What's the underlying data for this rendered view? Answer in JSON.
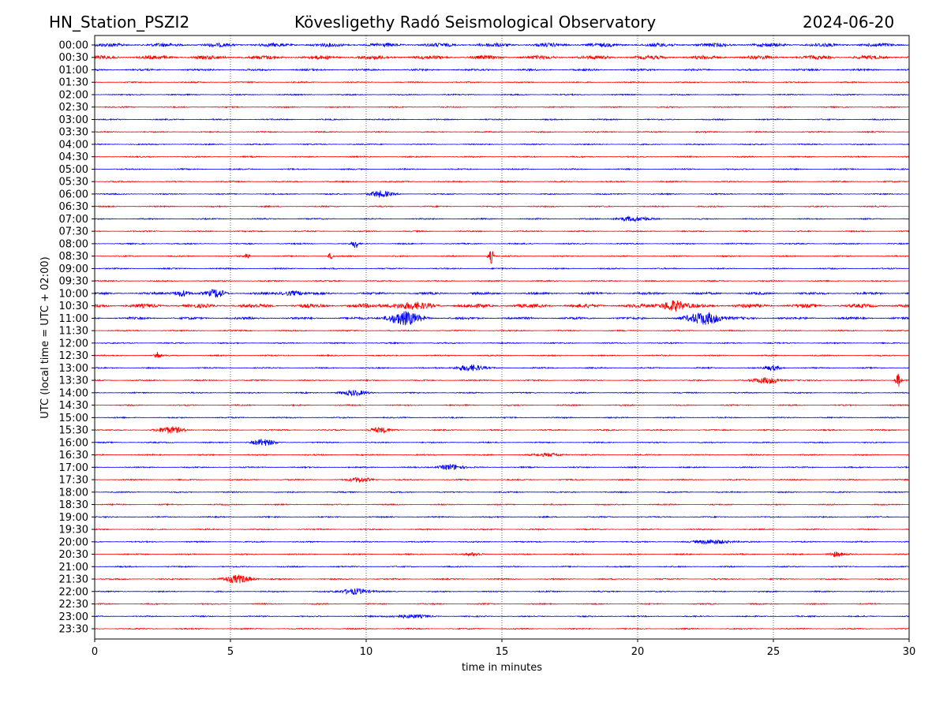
{
  "header": {
    "station": "HN_Station_PSZI2",
    "observatory": "Kövesligethy Radó Seismological Observatory",
    "date": "2024-06-20"
  },
  "chart_data": {
    "type": "line",
    "title": "Kövesligethy Radó Seismological Observatory",
    "xlabel": "time in minutes",
    "ylabel": "UTC (local time = UTC + 02:00)",
    "xlim": [
      0,
      30
    ],
    "xticks": [
      "0",
      "5",
      "10",
      "15",
      "20",
      "25",
      "30"
    ],
    "grid": "vertical dotted at 5-minute intervals",
    "colors": [
      "#0000ff",
      "#ff0000"
    ],
    "rows": [
      "00:00",
      "00:30",
      "01:00",
      "01:30",
      "02:00",
      "02:30",
      "03:00",
      "03:30",
      "04:00",
      "04:30",
      "05:00",
      "05:30",
      "06:00",
      "06:30",
      "07:00",
      "07:30",
      "08:00",
      "08:30",
      "09:00",
      "09:30",
      "10:00",
      "10:30",
      "11:00",
      "11:30",
      "12:00",
      "12:30",
      "13:00",
      "13:30",
      "14:00",
      "14:30",
      "15:00",
      "15:30",
      "16:00",
      "16:30",
      "17:00",
      "17:30",
      "18:00",
      "18:30",
      "19:00",
      "19:30",
      "20:00",
      "20:30",
      "21:00",
      "21:30",
      "22:00",
      "22:30",
      "23:00",
      "23:30"
    ],
    "row_noise": {
      "0": 2.5,
      "1": 2.5,
      "2": 1.2,
      "20": 1.5,
      "21": 2.5,
      "22": 1.5
    },
    "events": [
      [
        12,
        10.5,
        4,
        0.4
      ],
      [
        14,
        19.8,
        3,
        0.6
      ],
      [
        16,
        9.6,
        6,
        0.1
      ],
      [
        17,
        5.6,
        4,
        0.1
      ],
      [
        17,
        8.7,
        4,
        0.1
      ],
      [
        17,
        14.6,
        9,
        0.1
      ],
      [
        20,
        3.2,
        4,
        0.3
      ],
      [
        20,
        4.5,
        5,
        0.3
      ],
      [
        20,
        7.3,
        3,
        0.4
      ],
      [
        21,
        11.5,
        3,
        0.8
      ],
      [
        21,
        21.3,
        7,
        0.4
      ],
      [
        22,
        11.4,
        8,
        0.6
      ],
      [
        22,
        22.5,
        8,
        0.6
      ],
      [
        25,
        2.3,
        5,
        0.1
      ],
      [
        26,
        13.8,
        4,
        0.5
      ],
      [
        26,
        25,
        3,
        0.3
      ],
      [
        27,
        24.8,
        4,
        0.5
      ],
      [
        27,
        29.6,
        9,
        0.1
      ],
      [
        28,
        9.5,
        3,
        0.5
      ],
      [
        31,
        2.8,
        4,
        0.5
      ],
      [
        31,
        10.5,
        3,
        0.4
      ],
      [
        32,
        6.2,
        4,
        0.4
      ],
      [
        33,
        16.8,
        2,
        0.5
      ],
      [
        34,
        13.1,
        4,
        0.4
      ],
      [
        35,
        9.8,
        3,
        0.4
      ],
      [
        40,
        22.8,
        3,
        0.6
      ],
      [
        41,
        27.3,
        3,
        0.3
      ],
      [
        41,
        14,
        2,
        0.3
      ],
      [
        43,
        5.3,
        5,
        0.5
      ],
      [
        44,
        9.6,
        4,
        0.5
      ],
      [
        46,
        11.5,
        2,
        0.8
      ]
    ]
  }
}
